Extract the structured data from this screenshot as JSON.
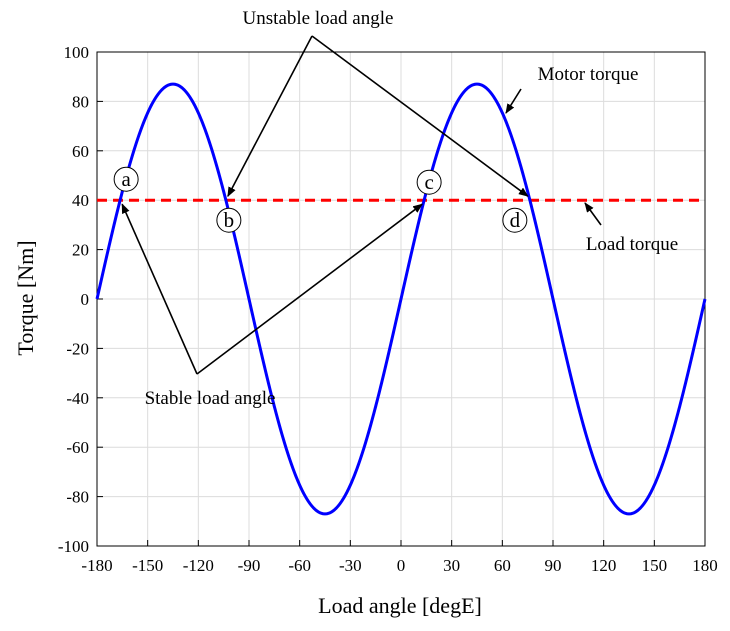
{
  "chart_data": {
    "type": "line",
    "xlabel": "Load angle [degE]",
    "ylabel": "Torque [Nm]",
    "xlim": [
      -180,
      180
    ],
    "ylim": [
      -100,
      100
    ],
    "xticks": [
      -180,
      -150,
      -120,
      -90,
      -60,
      -30,
      0,
      30,
      60,
      90,
      120,
      150,
      180
    ],
    "yticks": [
      -100,
      -80,
      -60,
      -40,
      -20,
      0,
      20,
      40,
      60,
      80,
      100
    ],
    "grid": true,
    "series": [
      {
        "name": "Motor torque",
        "color": "#0000ff",
        "style": "solid",
        "function": "87*sin(2*x)",
        "x": [
          -180,
          -165,
          -150,
          -135,
          -120,
          -105,
          -90,
          -75,
          -60,
          -45,
          -30,
          -15,
          0,
          15,
          30,
          45,
          60,
          75,
          90,
          105,
          120,
          135,
          150,
          165,
          180
        ],
        "y": [
          0,
          43.5,
          75.3,
          87,
          75.3,
          43.5,
          0,
          -43.5,
          -75.3,
          -87,
          -75.3,
          -43.5,
          0,
          43.5,
          75.3,
          87,
          75.3,
          43.5,
          0,
          -43.5,
          -75.3,
          -87,
          -75.3,
          -43.5,
          0
        ]
      },
      {
        "name": "Load torque",
        "color": "#ff0000",
        "style": "dashed",
        "x": [
          -180,
          180
        ],
        "y": [
          40,
          40
        ]
      }
    ],
    "points": [
      {
        "label": "a",
        "x": -166.3,
        "y": 40
      },
      {
        "label": "b",
        "x": -103.7,
        "y": 40
      },
      {
        "label": "c",
        "x": 13.7,
        "y": 40
      },
      {
        "label": "d",
        "x": 76.3,
        "y": 40
      }
    ],
    "annotations": {
      "unstable": "Unstable load angle",
      "stable": "Stable load angle",
      "motor": "Motor torque",
      "load": "Load torque"
    }
  }
}
